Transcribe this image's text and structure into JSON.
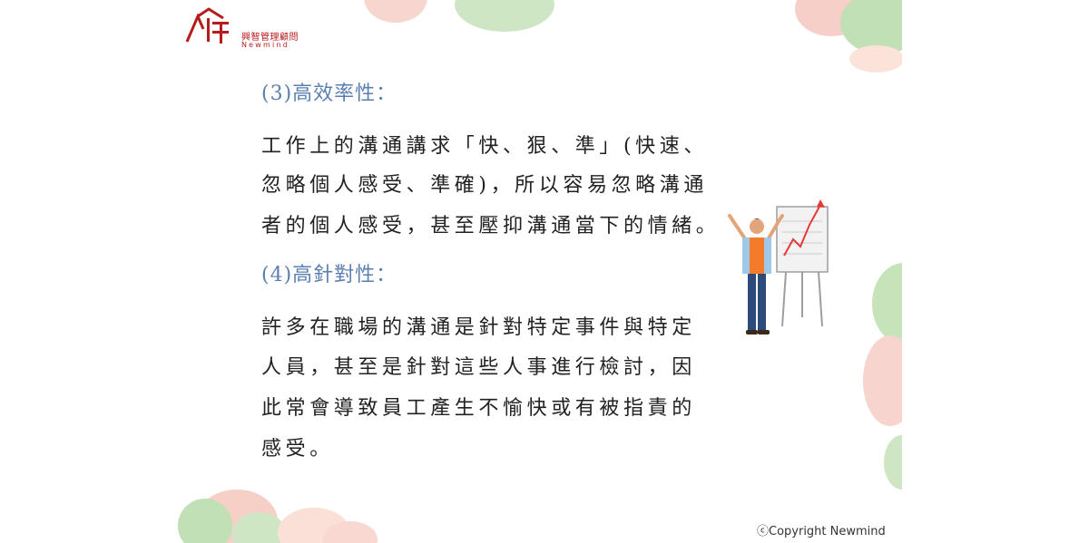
{
  "logo": {
    "name_cn": "興智管理顧問",
    "name_en": "Newmind"
  },
  "section3": {
    "heading": "(3)高效率性：",
    "lines": [
      "工作上的溝通講求「快、狠、準」(快速、",
      "忽略個人感受、準確)，所以容易忽略溝通",
      "者的個人感受，甚至壓抑溝通當下的情緒。"
    ]
  },
  "section4": {
    "heading": "(4)高針對性：",
    "lines": [
      "許多在職場的溝通是針對特定事件與特定",
      "人員，甚至是針對這些人事進行檢討，因",
      "此常會導致員工產生不愉快或有被指責的",
      "感受。"
    ]
  },
  "footer": {
    "copyright": "ⓒCopyright Newmind"
  },
  "colors": {
    "heading": "#5b7fb0",
    "text": "#222222",
    "brand": "#b71c1c",
    "blob_pink": "#f6c9c2",
    "blob_green": "#bfe0b4"
  }
}
